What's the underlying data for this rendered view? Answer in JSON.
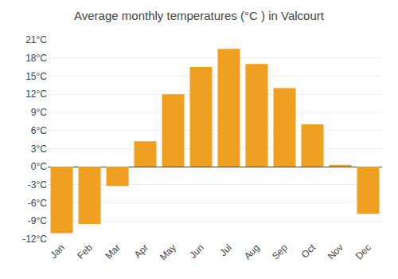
{
  "chart_data": {
    "type": "bar",
    "title": "Average monthly temperatures (°C ) in Valcourt",
    "categories": [
      "Jan",
      "Feb",
      "Mar",
      "Apr",
      "May",
      "Jun",
      "Jul",
      "Aug",
      "Sep",
      "Oct",
      "Nov",
      "Dec"
    ],
    "values": [
      -11,
      -9.5,
      -3.2,
      4.2,
      12,
      16.5,
      19.5,
      17,
      13,
      7,
      0.3,
      -7.8
    ],
    "color": "#F0A020",
    "ylim": [
      -12,
      21
    ],
    "yticks": [
      {
        "value": -12,
        "label": "-12°C"
      },
      {
        "value": -9,
        "label": "-9°C"
      },
      {
        "value": -6,
        "label": "-6°C"
      },
      {
        "value": -3,
        "label": "-3°C"
      },
      {
        "value": 0,
        "label": "0°C"
      },
      {
        "value": 3,
        "label": "3°C"
      },
      {
        "value": 6,
        "label": "6°C"
      },
      {
        "value": 9,
        "label": "9°C"
      },
      {
        "value": 12,
        "label": "12°C"
      },
      {
        "value": 15,
        "label": "15°C"
      },
      {
        "value": 18,
        "label": "18°C"
      },
      {
        "value": 21,
        "label": "21°C"
      }
    ],
    "grid": true
  }
}
